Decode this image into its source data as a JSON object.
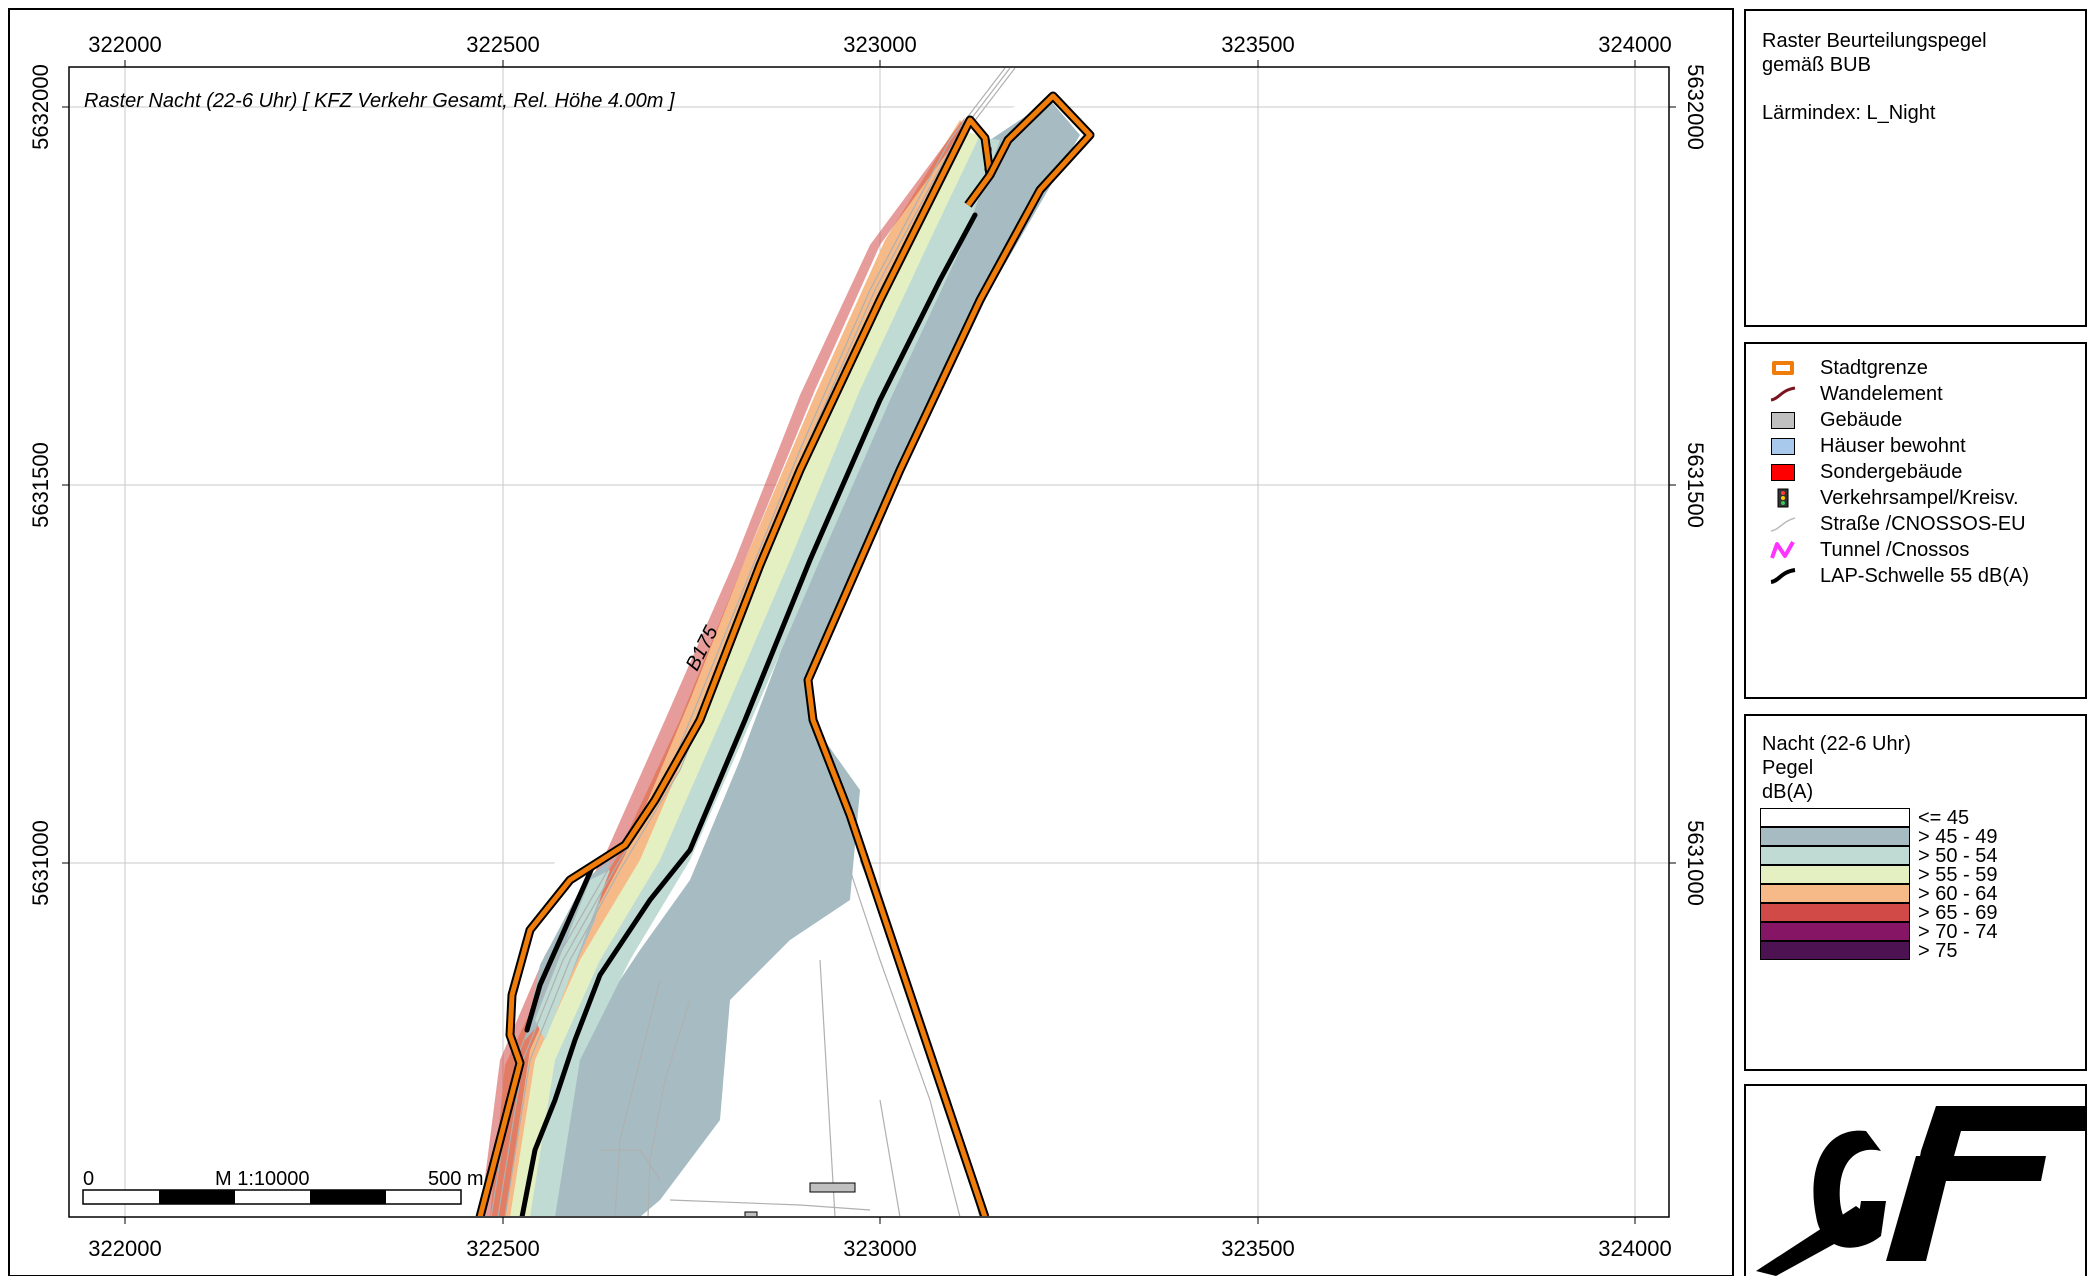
{
  "map": {
    "title": "Raster Nacht (22-6 Uhr)  [ KFZ Verkehr Gesamt, Rel. Höhe  4.00m ]",
    "road_label": "B175",
    "x_ticks": [
      "322000",
      "322500",
      "323000",
      "323500",
      "324000"
    ],
    "y_ticks": [
      "5632000",
      "5631500",
      "5631000"
    ],
    "scale": {
      "zero": "0",
      "ratio": "M 1:10000",
      "end": "500 m"
    }
  },
  "info_panel": {
    "line1": "Raster Beurteilungspegel",
    "line2": "gemäß BUB",
    "index": "Lärmindex: L_Night"
  },
  "legend": {
    "items": [
      {
        "label": "Stadtgrenze",
        "icon": "city-boundary-icon",
        "color": "#f07d0a"
      },
      {
        "label": "Wandelement",
        "icon": "wall-element-icon",
        "color": "#7a1520"
      },
      {
        "label": "Gebäude",
        "icon": "building-icon",
        "color": "#c0c0c0"
      },
      {
        "label": "Häuser bewohnt",
        "icon": "residential-house-icon",
        "color": "#a8c8ec"
      },
      {
        "label": "Sondergebäude",
        "icon": "special-building-icon",
        "color": "#ff0000"
      },
      {
        "label": "Verkehrsampel/Kreisv.",
        "icon": "traffic-light-icon",
        "color": "#333333"
      },
      {
        "label": "Straße /CNOSSOS-EU",
        "icon": "road-icon",
        "color": "#bbbbbb"
      },
      {
        "label": "Tunnel /Cnossos",
        "icon": "tunnel-icon",
        "color": "#ff33ff"
      },
      {
        "label": "LAP-Schwelle 55 dB(A)",
        "icon": "threshold-line-icon",
        "color": "#000000"
      }
    ]
  },
  "scale_panel": {
    "title1": "Nacht (22-6 Uhr)",
    "title2": "Pegel",
    "unit": "dB(A)",
    "classes": [
      {
        "label": "<= 45",
        "color": "#ffffff"
      },
      {
        "label": "> 45 - 49",
        "color": "#a6bcc2"
      },
      {
        "label": "> 50 - 54",
        "color": "#bfdbd4"
      },
      {
        "label": "> 55 - 59",
        "color": "#e4f0c2"
      },
      {
        "label": "> 60 - 64",
        "color": "#f6ba88"
      },
      {
        "label": "> 65 - 69",
        "color": "#d24a47"
      },
      {
        "label": "> 70 - 74",
        "color": "#861566"
      },
      {
        "label": "> 75",
        "color": "#4d1252"
      }
    ]
  },
  "logo": {
    "text": "GIF"
  }
}
